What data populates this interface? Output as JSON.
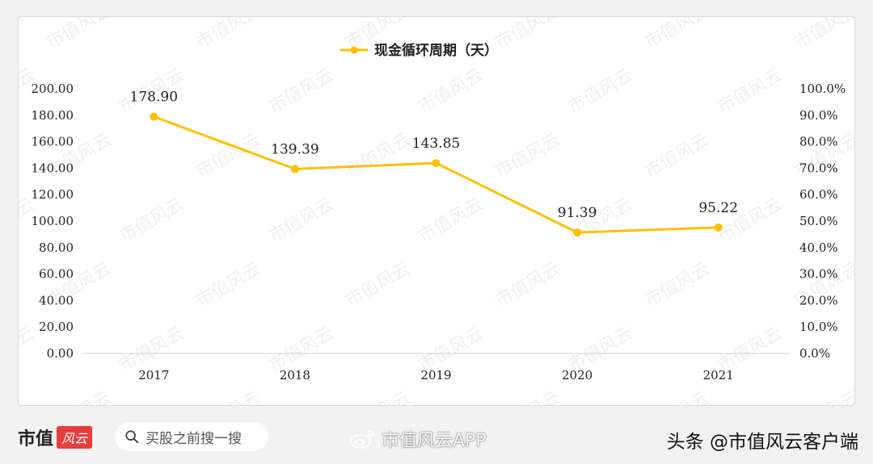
{
  "chart_data": {
    "type": "line",
    "categories": [
      "2017",
      "2018",
      "2019",
      "2020",
      "2021"
    ],
    "series": [
      {
        "name": "现金循环周期（天）",
        "values": [
          178.9,
          139.39,
          143.85,
          91.39,
          95.22
        ],
        "labels": [
          "178.90",
          "139.39",
          "143.85",
          "91.39",
          "95.22"
        ],
        "color": "#FFC000"
      }
    ],
    "ylim": [
      0,
      200
    ],
    "y_ticks": [
      "0.00",
      "20.00",
      "40.00",
      "60.00",
      "80.00",
      "100.00",
      "120.00",
      "140.00",
      "160.00",
      "180.00",
      "200.00"
    ],
    "y2lim": [
      0,
      1
    ],
    "y2_ticks": [
      "0.0%",
      "10.0%",
      "20.0%",
      "30.0%",
      "40.0%",
      "50.0%",
      "60.0%",
      "70.0%",
      "80.0%",
      "90.0%",
      "100.0%"
    ],
    "legend_position": "top-center",
    "grid": false,
    "watermark_text": "市值风云"
  },
  "footer": {
    "brand_name": "市值",
    "brand_mark": "风云",
    "search_text": "买股之前搜一搜",
    "weibo_text": "市值风云APP",
    "toutiao_text": "头条 @市值风云客户端"
  },
  "icons": {
    "search": "search-icon",
    "weibo": "weibo-icon"
  }
}
